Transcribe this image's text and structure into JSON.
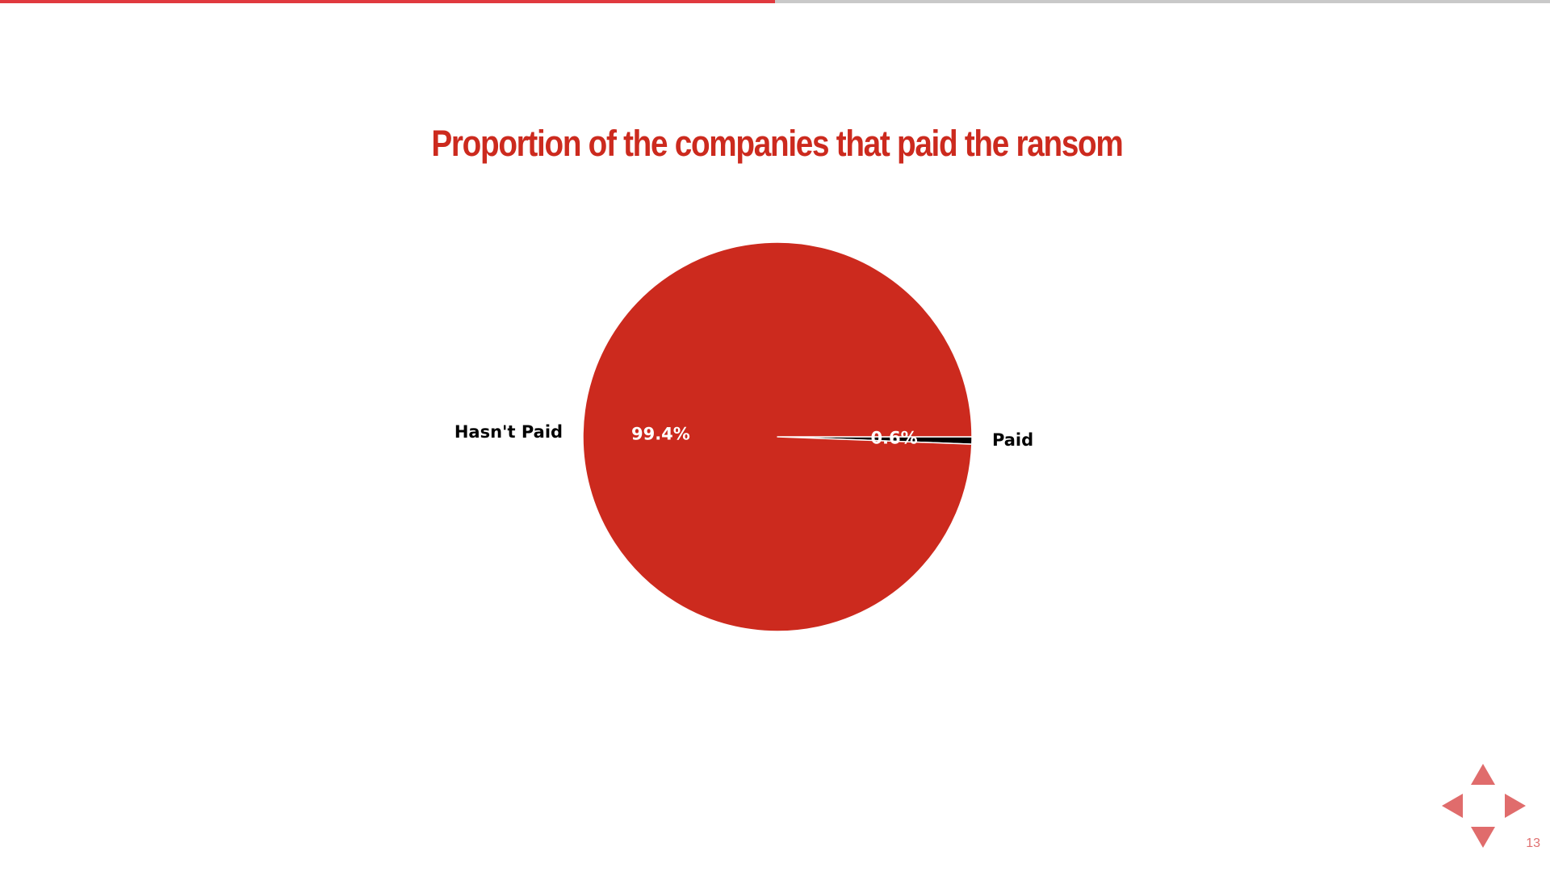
{
  "progress": {
    "fraction": 0.5,
    "fill_color": "#e0393e",
    "track_color": "#c9c9c9"
  },
  "chart_data": {
    "type": "pie",
    "title": "Proportion of the companies that paid the ransom",
    "title_color": "#cc2a1e",
    "start_angle_deg": 0,
    "direction": "clockwise",
    "slices": [
      {
        "label": "Paid",
        "value": 0.6,
        "pct_label": "0.6%",
        "color": "#000000",
        "pct_color": "#ffffff",
        "label_color": "#000000"
      },
      {
        "label": "Hasn't Paid",
        "value": 99.4,
        "pct_label": "99.4%",
        "color": "#cc2a1e",
        "pct_color": "#ffffff",
        "label_color": "#000000"
      }
    ],
    "slice_border_color": "#ffffff",
    "legend": "none",
    "grid": false
  },
  "navigation": {
    "up_icon": "triangle-up-icon",
    "down_icon": "triangle-down-icon",
    "left_icon": "triangle-left-icon",
    "right_icon": "triangle-right-icon",
    "color": "#e06c6c"
  },
  "slide_number": {
    "text": "13",
    "color": "#e07070"
  }
}
